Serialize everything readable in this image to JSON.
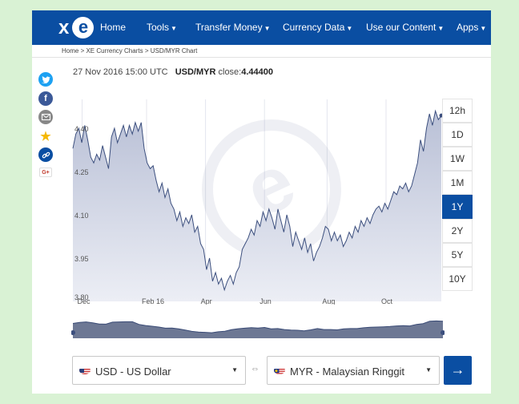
{
  "nav": {
    "logo": "xe",
    "items": [
      {
        "label": "Home",
        "dropdown": false
      },
      {
        "label": "Tools",
        "dropdown": true
      },
      {
        "label": "Transfer Money",
        "dropdown": true
      },
      {
        "label": "Currency Data",
        "dropdown": true
      },
      {
        "label": "Use our Content",
        "dropdown": true
      },
      {
        "label": "Apps",
        "dropdown": true
      }
    ]
  },
  "breadcrumb": "Home > XE Currency Charts > USD/MYR Chart",
  "share": [
    {
      "icon": "twitter-icon",
      "color": "#1da1f2"
    },
    {
      "icon": "facebook-icon",
      "color": "#3b5998"
    },
    {
      "icon": "email-icon",
      "color": "#888888"
    },
    {
      "icon": "star-icon",
      "color": "#f5b800"
    },
    {
      "icon": "link-icon",
      "color": "#0a4ea2"
    },
    {
      "icon": "google-plus-icon",
      "color": "#c0392b",
      "label": "G+"
    }
  ],
  "quote": {
    "timestamp": "27 Nov 2016 15:00 UTC",
    "pair": "USD/MYR",
    "close_label": "close:",
    "close_value": "4.44400"
  },
  "ranges": {
    "items": [
      "12h",
      "1D",
      "1W",
      "1M",
      "1Y",
      "2Y",
      "5Y",
      "10Y"
    ],
    "active": "1Y"
  },
  "colors": {
    "brand": "#0a4ea2",
    "background": "#d9f2d4",
    "area_fill": "#c9cedf",
    "line": "#3c4f7e"
  },
  "chart_data": {
    "type": "area",
    "ylim": [
      3.8,
      4.5
    ],
    "yticks": [
      4.4,
      4.25,
      4.1,
      3.95,
      3.8
    ],
    "ytick_labels": [
      "4.40",
      "4.25",
      "4.10",
      "3.95",
      "3.80"
    ],
    "xtick_labels": [
      "Dec",
      "Feb 16",
      "Apr",
      "Jun",
      "Aug",
      "Oct"
    ],
    "grid": true,
    "series": [
      {
        "values": [
          4.33,
          4.38,
          4.4,
          4.35,
          4.41,
          4.36,
          4.3,
          4.28,
          4.31,
          4.29,
          4.34,
          4.3,
          4.26,
          4.37,
          4.4,
          4.35,
          4.38,
          4.41,
          4.37,
          4.41,
          4.38,
          4.42,
          4.39,
          4.42,
          4.33,
          4.28,
          4.26,
          4.27,
          4.22,
          4.18,
          4.21,
          4.16,
          4.19,
          4.14,
          4.12,
          4.08,
          4.11,
          4.06,
          4.09,
          4.07,
          4.1,
          4.04,
          4.06,
          4.0,
          3.98,
          3.91,
          3.95,
          3.87,
          3.9,
          3.86,
          3.88,
          3.84,
          3.87,
          3.89,
          3.86,
          3.9,
          3.92,
          3.98,
          4.0,
          4.02,
          4.05,
          4.03,
          4.08,
          4.06,
          4.11,
          4.08,
          4.12,
          4.09,
          4.05,
          4.12,
          4.08,
          4.04,
          4.1,
          4.06,
          3.99,
          4.04,
          4.01,
          3.98,
          4.02,
          3.97,
          4.0,
          3.94,
          3.97,
          3.99,
          4.02,
          4.06,
          4.05,
          4.01,
          4.04,
          4.01,
          4.03,
          3.99,
          4.01,
          4.04,
          4.02,
          4.06,
          4.04,
          4.08,
          4.06,
          4.09,
          4.07,
          4.1,
          4.12,
          4.13,
          4.11,
          4.14,
          4.12,
          4.15,
          4.18,
          4.17,
          4.2,
          4.19,
          4.21,
          4.18,
          4.2,
          4.24,
          4.28,
          4.36,
          4.32,
          4.4,
          4.45,
          4.41,
          4.46,
          4.43,
          4.444
        ]
      }
    ]
  },
  "overview": {
    "values": [
      4.33,
      4.38,
      4.41,
      4.36,
      4.3,
      4.29,
      4.4,
      4.41,
      4.42,
      4.42,
      4.28,
      4.22,
      4.18,
      4.14,
      4.08,
      4.09,
      4.04,
      3.98,
      3.91,
      3.87,
      3.86,
      3.84,
      3.89,
      3.92,
      4.0,
      4.05,
      4.08,
      4.11,
      4.09,
      4.12,
      4.04,
      4.06,
      4.01,
      3.98,
      3.97,
      3.94,
      3.99,
      4.06,
      4.01,
      4.01,
      3.99,
      4.04,
      4.06,
      4.06,
      4.1,
      4.13,
      4.14,
      4.15,
      4.17,
      4.2,
      4.21,
      4.2,
      4.28,
      4.32,
      4.45,
      4.46,
      4.444
    ]
  },
  "converter": {
    "from": {
      "label": "USD - US Dollar"
    },
    "to": {
      "label": "MYR - Malaysian Ringgit"
    },
    "swap_icon": "swap-arrows-icon",
    "go_icon": "arrow-right-icon",
    "go_label": "→"
  }
}
